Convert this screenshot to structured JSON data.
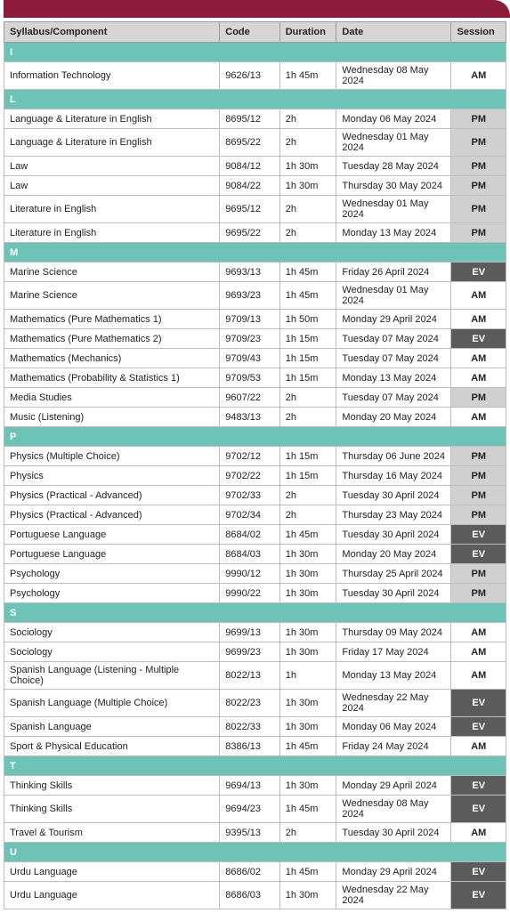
{
  "headers": {
    "syllabus": "Syllabus/Component",
    "code": "Code",
    "duration": "Duration",
    "date": "Date",
    "session": "Session"
  },
  "sections": [
    {
      "letter": "I",
      "rows": [
        {
          "syl": "Information Technology",
          "code": "9626/13",
          "dur": "1h 45m",
          "date": "Wednesday 08 May 2024",
          "sess": "AM"
        }
      ]
    },
    {
      "letter": "L",
      "rows": [
        {
          "syl": "Language & Literature in English",
          "code": "8695/12",
          "dur": "2h",
          "date": "Monday 06 May 2024",
          "sess": "PM"
        },
        {
          "syl": "Language & Literature in English",
          "code": "8695/22",
          "dur": "2h",
          "date": "Wednesday 01 May 2024",
          "sess": "PM"
        },
        {
          "syl": "Law",
          "code": "9084/12",
          "dur": "1h 30m",
          "date": "Tuesday 28 May 2024",
          "sess": "PM"
        },
        {
          "syl": "Law",
          "code": "9084/22",
          "dur": "1h 30m",
          "date": "Thursday 30 May 2024",
          "sess": "PM"
        },
        {
          "syl": "Literature in English",
          "code": "9695/12",
          "dur": "2h",
          "date": "Wednesday 01 May 2024",
          "sess": "PM"
        },
        {
          "syl": "Literature in English",
          "code": "9695/22",
          "dur": "2h",
          "date": "Monday 13 May 2024",
          "sess": "PM"
        }
      ]
    },
    {
      "letter": "M",
      "rows": [
        {
          "syl": "Marine Science",
          "code": "9693/13",
          "dur": "1h 45m",
          "date": "Friday 26 April 2024",
          "sess": "EV"
        },
        {
          "syl": "Marine Science",
          "code": "9693/23",
          "dur": "1h 45m",
          "date": "Wednesday 01 May 2024",
          "sess": "AM"
        },
        {
          "syl": "Mathematics (Pure Mathematics 1)",
          "code": "9709/13",
          "dur": "1h 50m",
          "date": "Monday 29 April 2024",
          "sess": "AM"
        },
        {
          "syl": "Mathematics (Pure Mathematics 2)",
          "code": "9709/23",
          "dur": "1h 15m",
          "date": "Tuesday 07 May 2024",
          "sess": "EV"
        },
        {
          "syl": "Mathematics (Mechanics)",
          "code": "9709/43",
          "dur": "1h 15m",
          "date": "Tuesday 07 May 2024",
          "sess": "AM"
        },
        {
          "syl": "Mathematics (Probability & Statistics 1)",
          "code": "9709/53",
          "dur": "1h 15m",
          "date": "Monday 13 May 2024",
          "sess": "AM"
        },
        {
          "syl": "Media Studies",
          "code": "9607/22",
          "dur": "2h",
          "date": "Tuesday 07 May 2024",
          "sess": "PM"
        },
        {
          "syl": "Music (Listening)",
          "code": "9483/13",
          "dur": "2h",
          "date": "Monday 20 May 2024",
          "sess": "AM"
        }
      ]
    },
    {
      "letter": "P",
      "rows": [
        {
          "syl": "Physics (Multiple Choice)",
          "code": "9702/12",
          "dur": "1h 15m",
          "date": "Thursday 06 June 2024",
          "sess": "PM"
        },
        {
          "syl": "Physics",
          "code": "9702/22",
          "dur": "1h 15m",
          "date": "Thursday 16 May 2024",
          "sess": "PM"
        },
        {
          "syl": "Physics (Practical - Advanced)",
          "code": "9702/33",
          "dur": "2h",
          "date": "Tuesday 30 April 2024",
          "sess": "PM"
        },
        {
          "syl": "Physics (Practical - Advanced)",
          "code": "9702/34",
          "dur": "2h",
          "date": "Thursday 23 May 2024",
          "sess": "PM"
        },
        {
          "syl": "Portuguese Language",
          "code": "8684/02",
          "dur": "1h 45m",
          "date": "Tuesday 30 April 2024",
          "sess": "EV"
        },
        {
          "syl": "Portuguese Language",
          "code": "8684/03",
          "dur": "1h 30m",
          "date": "Monday 20 May 2024",
          "sess": "EV"
        },
        {
          "syl": "Psychology",
          "code": "9990/12",
          "dur": "1h 30m",
          "date": "Thursday 25 April 2024",
          "sess": "PM"
        },
        {
          "syl": "Psychology",
          "code": "9990/22",
          "dur": "1h 30m",
          "date": "Tuesday 30 April 2024",
          "sess": "PM"
        }
      ]
    },
    {
      "letter": "S",
      "rows": [
        {
          "syl": "Sociology",
          "code": "9699/13",
          "dur": "1h 30m",
          "date": "Thursday 09 May 2024",
          "sess": "AM"
        },
        {
          "syl": "Sociology",
          "code": "9699/23",
          "dur": "1h 30m",
          "date": "Friday 17 May 2024",
          "sess": "AM"
        },
        {
          "syl": "Spanish Language (Listening - Multiple Choice)",
          "code": "8022/13",
          "dur": "1h",
          "date": "Monday 13 May 2024",
          "sess": "AM"
        },
        {
          "syl": "Spanish Language (Multiple Choice)",
          "code": "8022/23",
          "dur": "1h 30m",
          "date": "Wednesday 22 May 2024",
          "sess": "EV"
        },
        {
          "syl": "Spanish Language",
          "code": "8022/33",
          "dur": "1h 30m",
          "date": "Monday 06 May 2024",
          "sess": "EV"
        },
        {
          "syl": "Sport & Physical Education",
          "code": "8386/13",
          "dur": "1h 45m",
          "date": "Friday 24 May 2024",
          "sess": "AM"
        }
      ]
    },
    {
      "letter": "T",
      "rows": [
        {
          "syl": "Thinking Skills",
          "code": "9694/13",
          "dur": "1h 30m",
          "date": "Monday 29 April 2024",
          "sess": "EV"
        },
        {
          "syl": "Thinking Skills",
          "code": "9694/23",
          "dur": "1h 45m",
          "date": "Wednesday 08 May 2024",
          "sess": "EV"
        },
        {
          "syl": "Travel & Tourism",
          "code": "9395/13",
          "dur": "2h",
          "date": "Tuesday 30 April 2024",
          "sess": "AM"
        }
      ]
    },
    {
      "letter": "U",
      "rows": [
        {
          "syl": "Urdu Language",
          "code": "8686/02",
          "dur": "1h 45m",
          "date": "Monday 29 April 2024",
          "sess": "EV"
        },
        {
          "syl": "Urdu Language",
          "code": "8686/03",
          "dur": "1h 30m",
          "date": "Wednesday 22 May 2024",
          "sess": "EV"
        }
      ]
    }
  ]
}
